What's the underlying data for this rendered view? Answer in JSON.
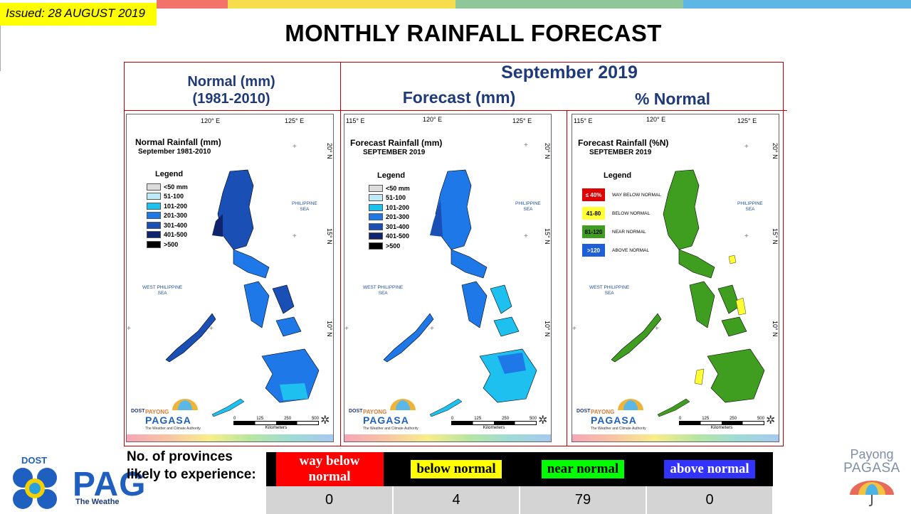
{
  "issued": "Issued: 28 AUGUST 2019",
  "title": "MONTHLY RAINFALL FORECAST",
  "header": {
    "normal_line1": "Normal (mm)",
    "normal_line2": "(1981-2010)",
    "month": "September 2019",
    "forecast": "Forecast (mm)",
    "percent": "% Normal"
  },
  "coords": {
    "lon115": "115° E",
    "lon120": "120° E",
    "lon125": "125° E",
    "lat20": "20° N",
    "lat15": "15° N",
    "lat10": "10° N"
  },
  "seas": {
    "philippine": [
      "PHILIPPINE",
      "SEA"
    ],
    "west": [
      "WEST PHILIPPINE",
      "SEA"
    ]
  },
  "panels": {
    "normal": {
      "title": "Normal Rainfall (mm)",
      "subtitle": "September 1981-2010",
      "legend_title": "Legend",
      "legend": [
        {
          "label": "<50 mm",
          "color": "#dcdcdc"
        },
        {
          "label": "51-100",
          "color": "#bfe9f7"
        },
        {
          "label": "101-200",
          "color": "#1ec0ef"
        },
        {
          "label": "201-300",
          "color": "#1f78e8"
        },
        {
          "label": "301-400",
          "color": "#1a4fb5"
        },
        {
          "label": "401-500",
          "color": "#10246e"
        },
        {
          "label": ">500",
          "color": "#000000"
        }
      ]
    },
    "forecast": {
      "title": "Forecast Rainfall (mm)",
      "subtitle": "SEPTEMBER 2019",
      "legend_title": "Legend",
      "legend": [
        {
          "label": "<50 mm",
          "color": "#dcdcdc"
        },
        {
          "label": "51-100",
          "color": "#bfe9f7"
        },
        {
          "label": "101-200",
          "color": "#1ec0ef"
        },
        {
          "label": "201-300",
          "color": "#1f78e8"
        },
        {
          "label": "301-400",
          "color": "#1a4fb5"
        },
        {
          "label": "401-500",
          "color": "#10246e"
        },
        {
          "label": ">500",
          "color": "#000000"
        }
      ]
    },
    "percent": {
      "title": "Forecast Rainfall (%N)",
      "subtitle": "SEPTEMBER 2019",
      "legend_title": "Legend",
      "legend": [
        {
          "swatch": "≤ 40%",
          "label": "WAY BELOW NORMAL",
          "color": "#e00000",
          "text_color": "#ffffff"
        },
        {
          "swatch": "41-80",
          "label": "BELOW NORMAL",
          "color": "#ffff33",
          "text_color": "#000000"
        },
        {
          "swatch": "81-120",
          "label": "NEAR NORMAL",
          "color": "#3f9e1f",
          "text_color": "#000000"
        },
        {
          "swatch": ">120",
          "label": "ABOVE NORMAL",
          "color": "#1f5fd8",
          "text_color": "#ffffff"
        }
      ]
    }
  },
  "map_logo": {
    "dost": "DOST",
    "payong": "PAYONG",
    "pagasa": "PAGASA",
    "tagline": "The Weather and Climate Authority"
  },
  "scale": {
    "ticks": [
      "0",
      "125",
      "250",
      "500"
    ],
    "unit": "Kilometers"
  },
  "summary": {
    "question": "No. of provinces likely to experience:",
    "categories": [
      {
        "label": "way below normal",
        "bg": "#ff0000",
        "fg": "#ffffff",
        "count": "0"
      },
      {
        "label": "below normal",
        "bg": "#ffff00",
        "fg": "#000000",
        "count": "4"
      },
      {
        "label": "near normal",
        "bg": "#00ff00",
        "fg": "#000000",
        "count": "79"
      },
      {
        "label": "above normal",
        "bg": "#3333ff",
        "fg": "#ffffff",
        "count": "0"
      }
    ]
  },
  "footer_logo": {
    "dost": "DOST",
    "pagasa": "PAG",
    "tagline": "The Weathe"
  },
  "right_logo": {
    "line1": "Payong",
    "line2": "PAGASA"
  }
}
